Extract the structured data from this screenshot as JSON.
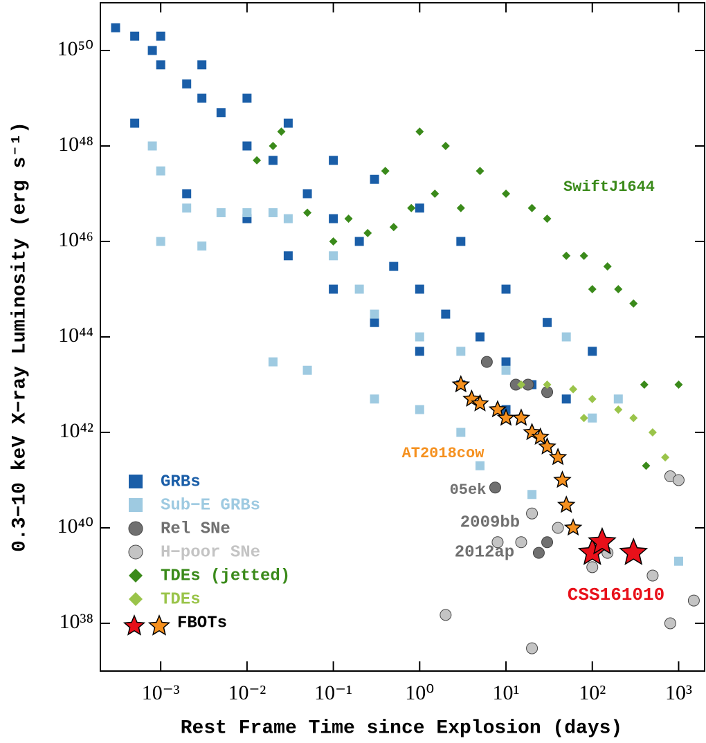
{
  "chart_data": {
    "type": "scatter",
    "xlabel": "Rest Frame Time since Explosion (days)",
    "ylabel": "0.3−10 keV X−ray Luminosity (erg s⁻¹)",
    "log_x": true,
    "log_y": true,
    "legend": "lower left",
    "xlim": [
      0.0002,
      2000
    ],
    "ylim": [
      1e+37,
      1e+51
    ],
    "xticks": [
      {
        "value": 0.001,
        "label": "10⁻³"
      },
      {
        "value": 0.01,
        "label": "10⁻²"
      },
      {
        "value": 0.1,
        "label": "10⁻¹"
      },
      {
        "value": 1,
        "label": "10⁰"
      },
      {
        "value": 10,
        "label": "10¹"
      },
      {
        "value": 100,
        "label": "10²"
      },
      {
        "value": 1000,
        "label": "10³"
      }
    ],
    "yticks": [
      {
        "value": 1e+38,
        "label": "10³⁸"
      },
      {
        "value": 1e+40,
        "label": "10⁴⁰"
      },
      {
        "value": 1e+42,
        "label": "10⁴²"
      },
      {
        "value": 1e+44,
        "label": "10⁴⁴"
      },
      {
        "value": 1e+46,
        "label": "10⁴⁶"
      },
      {
        "value": 1e+48,
        "label": "10⁴⁸"
      },
      {
        "value": 1e+50,
        "label": "10⁵⁰"
      }
    ],
    "series": [
      {
        "name": "GRBs",
        "color": "#1a5ea8",
        "marker": "square",
        "x": [
          0.0003,
          0.0005,
          0.0008,
          0.001,
          0.002,
          0.003,
          0.005,
          0.01,
          0.02,
          0.05,
          0.1,
          0.2,
          0.5,
          1,
          2,
          5,
          10,
          20,
          50,
          0.001,
          0.003,
          0.01,
          0.03,
          0.1,
          0.3,
          1,
          3,
          10,
          30,
          100,
          0.0005,
          0.002,
          0.01,
          0.03,
          0.1,
          0.3,
          1,
          3,
          10
        ],
        "values": [
          3e+50,
          2e+50,
          1e+50,
          5e+49,
          2e+49,
          1e+49,
          5e+48,
          1e+48,
          5e+47,
          1e+47,
          3e+46,
          1e+46,
          3e+45,
          1e+45,
          3e+44,
          1e+44,
          3e+43,
          1e+43,
          5e+42,
          2e+50,
          5e+49,
          1e+49,
          3e+48,
          5e+47,
          2e+47,
          5e+46,
          1e+46,
          1e+45,
          2e+44,
          5e+43,
          3e+48,
          1e+47,
          3e+46,
          5e+45,
          1e+45,
          2e+44,
          5e+43,
          1e+43,
          3e+42
        ]
      },
      {
        "name": "Sub−E GRBs",
        "color": "#9ecae1",
        "marker": "square",
        "x": [
          0.0008,
          0.001,
          0.002,
          0.005,
          0.01,
          0.02,
          0.03,
          0.001,
          0.003,
          0.1,
          0.2,
          0.3,
          1,
          3,
          10,
          0.02,
          0.05,
          0.3,
          1,
          3,
          5,
          50,
          200,
          1000,
          20,
          100
        ],
        "values": [
          1e+48,
          3e+47,
          5e+46,
          4e+46,
          4e+46,
          4e+46,
          3e+46,
          1e+46,
          8e+45,
          5e+45,
          1e+45,
          3e+44,
          1e+44,
          5e+43,
          2e+43,
          3e+43,
          2e+43,
          5e+42,
          3e+42,
          1e+42,
          2e+41,
          1e+44,
          5e+42,
          2e+39,
          5e+40,
          2e+42
        ]
      },
      {
        "name": "Rel SNe",
        "color": "#707070",
        "marker": "circle",
        "x": [
          7.5,
          30,
          24,
          6,
          13,
          18,
          30
        ],
        "values": [
          7e+40,
          5e+39,
          3e+39,
          3e+43,
          1e+43,
          1e+43,
          7e+42
        ]
      },
      {
        "name": "H−poor SNe",
        "color": "#c4c4c4",
        "marker": "circle",
        "x": [
          2,
          8,
          15,
          20,
          40,
          100,
          150,
          500,
          800,
          1000,
          1500,
          800,
          20
        ],
        "values": [
          1.5e+38,
          5e+39,
          5e+39,
          2e+40,
          1e+40,
          1.5e+39,
          3e+39,
          1e+39,
          1.2e+41,
          1e+41,
          3e+38,
          1e+38,
          3e+37
        ]
      },
      {
        "name": "TDEs (jetted)",
        "color": "#3a8a1a",
        "marker": "diamond",
        "x": [
          0.013,
          0.02,
          0.025,
          0.05,
          0.1,
          0.15,
          0.25,
          0.4,
          0.5,
          0.8,
          1,
          1.5,
          2,
          3,
          5,
          10,
          20,
          30,
          50,
          80,
          100,
          150,
          200,
          300,
          400,
          1000,
          420
        ],
        "values": [
          5e+47,
          1e+48,
          2e+48,
          4e+46,
          1e+46,
          3e+46,
          1.5e+46,
          3e+47,
          2e+46,
          5e+46,
          2e+48,
          1e+47,
          1e+48,
          5e+46,
          3e+47,
          1e+47,
          5e+46,
          3e+46,
          5e+45,
          5e+45,
          1e+45,
          3e+45,
          1e+45,
          5e+44,
          1e+43,
          1e+43,
          2e+41
        ]
      },
      {
        "name": "TDEs",
        "color": "#9ac44a",
        "marker": "diamond",
        "x": [
          15,
          30,
          60,
          100,
          200,
          300,
          500,
          700,
          80
        ],
        "values": [
          1e+43,
          1e+43,
          8e+42,
          5e+42,
          3e+42,
          2e+42,
          1e+42,
          3e+41,
          2e+42
        ]
      },
      {
        "name": "FBOTs",
        "color": "#e8101a",
        "marker": "star",
        "x": [
          100,
          130,
          300
        ],
        "values": [
          3e+39,
          5e+39,
          3e+39
        ]
      },
      {
        "color": "#f5901e",
        "marker": "star",
        "x": [
          3,
          4,
          5,
          8,
          10,
          15,
          20,
          25,
          30,
          40,
          45,
          50,
          60
        ],
        "values": [
          1e+43,
          5e+42,
          4e+42,
          3e+42,
          2e+42,
          2e+42,
          1e+42,
          8e+41,
          5e+41,
          3e+41,
          1e+41,
          3e+40,
          1e+40
        ]
      }
    ],
    "annotations": [
      {
        "text": "SwiftJ1644",
        "color": "#3a8a1a"
      },
      {
        "text": "AT2018cow",
        "color": "#f5901e"
      },
      {
        "text": "05ek",
        "color": "#707070"
      },
      {
        "text": "2009bb",
        "color": "#707070"
      },
      {
        "text": "2012ap",
        "color": "#707070"
      },
      {
        "text": "CSS161010",
        "color": "#e8101a"
      }
    ]
  }
}
